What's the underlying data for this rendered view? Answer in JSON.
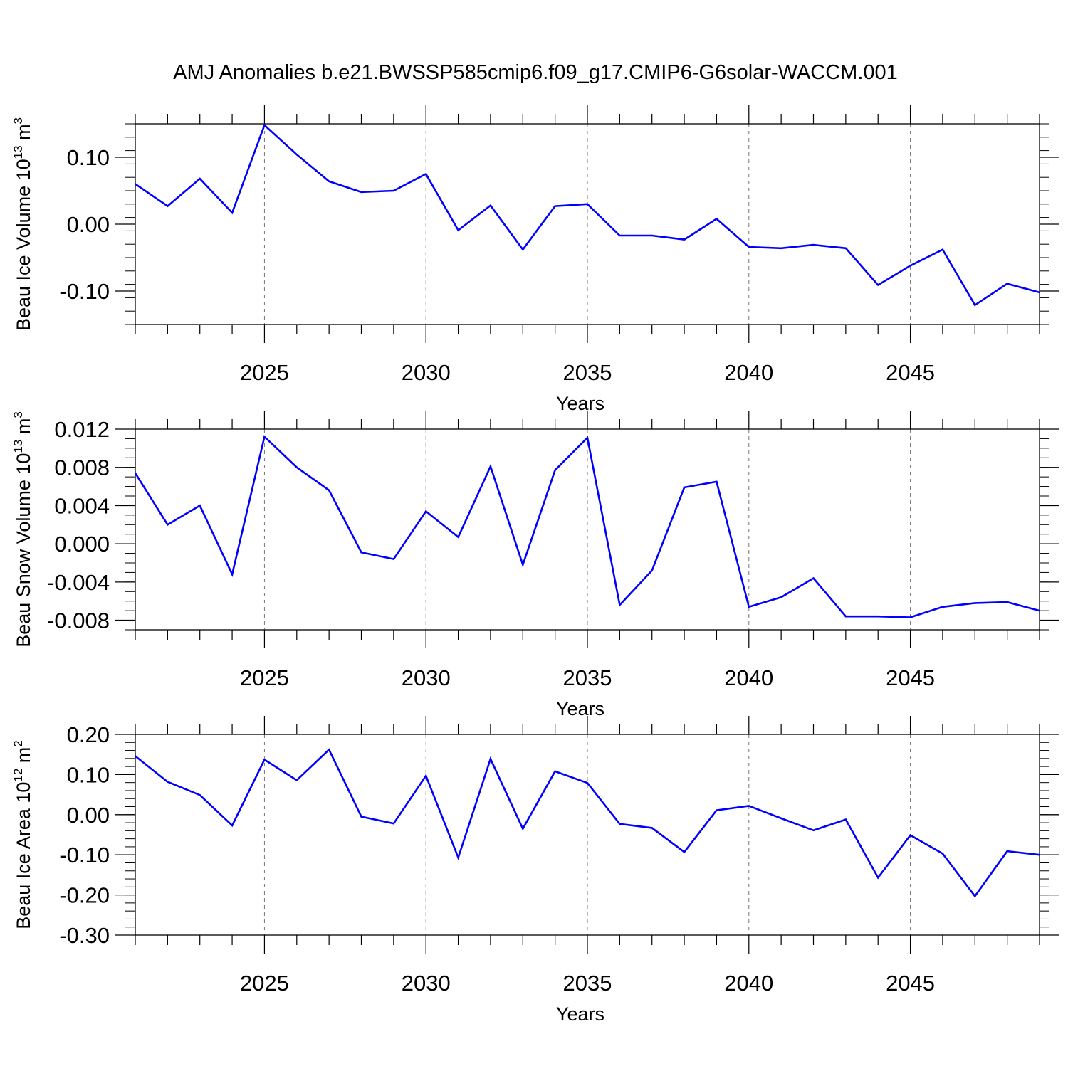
{
  "title": "AMJ Anomalies b.e21.BWSSP585cmip6.f09_g17.CMIP6-G6solar-WACCM.001",
  "line_color": "#0000ff",
  "chart_data": [
    {
      "type": "line",
      "ylabel_main": "Beau Ice Volume 10",
      "ylabel_exp": "13",
      "ylabel_unit": " m",
      "ylabel_unit_exp": "3",
      "xlabel": "Years",
      "xlim": [
        2021,
        2049
      ],
      "ylim": [
        -0.15,
        0.15
      ],
      "major_y": [
        0.1,
        0.0,
        -0.1
      ],
      "ytick_labels": [
        "0.10",
        "0.00",
        "-0.10"
      ],
      "minor_y_step": 0.02,
      "x": [
        2021,
        2022,
        2023,
        2024,
        2025,
        2026,
        2027,
        2028,
        2029,
        2030,
        2031,
        2032,
        2033,
        2034,
        2035,
        2036,
        2037,
        2038,
        2039,
        2040,
        2041,
        2042,
        2043,
        2044,
        2045,
        2046,
        2047,
        2048,
        2049
      ],
      "values": [
        0.06,
        0.027,
        0.068,
        0.017,
        0.148,
        0.104,
        0.064,
        0.048,
        0.05,
        0.075,
        -0.009,
        0.028,
        -0.038,
        0.027,
        0.03,
        -0.017,
        -0.017,
        -0.023,
        0.008,
        -0.034,
        -0.036,
        -0.031,
        -0.036,
        -0.091,
        -0.062,
        -0.038,
        -0.121,
        -0.089,
        -0.102
      ]
    },
    {
      "type": "line",
      "ylabel_main": "Beau Snow Volume 10",
      "ylabel_exp": "13",
      "ylabel_unit": " m",
      "ylabel_unit_exp": "3",
      "xlabel": "Years",
      "xlim": [
        2021,
        2049
      ],
      "ylim": [
        -0.009,
        0.012
      ],
      "major_y": [
        0.012,
        0.008,
        0.004,
        0.0,
        -0.004,
        -0.008
      ],
      "ytick_labels": [
        "0.012",
        "0.008",
        "0.004",
        "0.000",
        "-0.004",
        "-0.008"
      ],
      "minor_y_step": 0.001,
      "x": [
        2021,
        2022,
        2023,
        2024,
        2025,
        2026,
        2027,
        2028,
        2029,
        2030,
        2031,
        2032,
        2033,
        2034,
        2035,
        2036,
        2037,
        2038,
        2039,
        2040,
        2041,
        2042,
        2043,
        2044,
        2045,
        2046,
        2047,
        2048,
        2049
      ],
      "values": [
        0.0074,
        0.002,
        0.004,
        -0.0032,
        0.0112,
        0.008,
        0.0056,
        -0.0009,
        -0.0016,
        0.0034,
        0.0007,
        0.0081,
        -0.0022,
        0.0077,
        0.0111,
        -0.0064,
        -0.0028,
        0.0059,
        0.0065,
        -0.0066,
        -0.0056,
        -0.0036,
        -0.0076,
        -0.0076,
        -0.0077,
        -0.0066,
        -0.0062,
        -0.0061,
        -0.007
      ]
    },
    {
      "type": "line",
      "ylabel_main": "Beau Ice Area 10",
      "ylabel_exp": "12",
      "ylabel_unit": " m",
      "ylabel_unit_exp": "2",
      "xlabel": "Years",
      "xlim": [
        2021,
        2049
      ],
      "ylim": [
        -0.3,
        0.2
      ],
      "major_y": [
        0.2,
        0.1,
        0.0,
        -0.1,
        -0.2,
        -0.3
      ],
      "ytick_labels": [
        "0.20",
        "0.10",
        "0.00",
        "-0.10",
        "-0.20",
        "-0.30"
      ],
      "minor_y_step": 0.02,
      "x": [
        2021,
        2022,
        2023,
        2024,
        2025,
        2026,
        2027,
        2028,
        2029,
        2030,
        2031,
        2032,
        2033,
        2034,
        2035,
        2036,
        2037,
        2038,
        2039,
        2040,
        2041,
        2042,
        2043,
        2044,
        2045,
        2046,
        2047,
        2048,
        2049
      ],
      "values": [
        0.146,
        0.082,
        0.049,
        -0.027,
        0.137,
        0.086,
        0.162,
        -0.005,
        -0.022,
        0.097,
        -0.107,
        0.139,
        -0.035,
        0.108,
        0.079,
        -0.023,
        -0.033,
        -0.093,
        0.011,
        0.022,
        -0.009,
        -0.039,
        -0.012,
        -0.157,
        -0.051,
        -0.097,
        -0.203,
        -0.091,
        -0.1
      ]
    }
  ],
  "x_major_ticks": [
    2025,
    2030,
    2035,
    2040,
    2045
  ],
  "x_major_labels": [
    "2025",
    "2030",
    "2035",
    "2040",
    "2045"
  ]
}
